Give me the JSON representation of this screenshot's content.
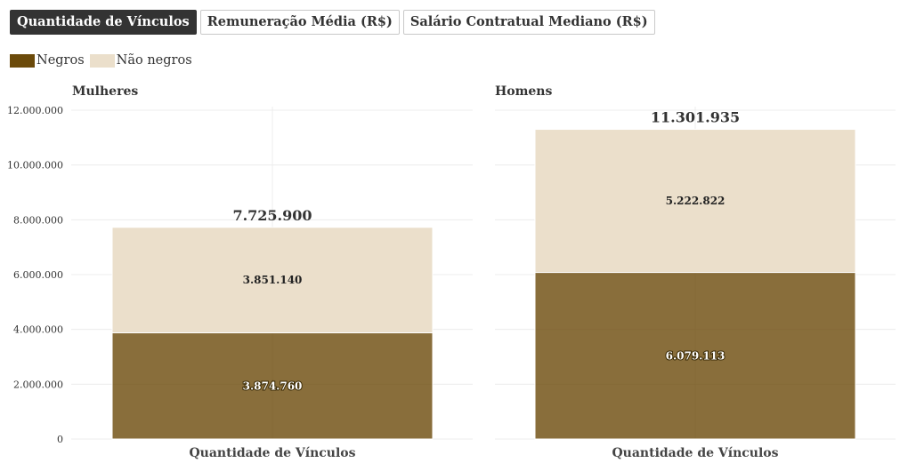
{
  "tabs": [
    {
      "label": "Quantidade de Vínculos",
      "active": true
    },
    {
      "label": "Remuneração Média (R$)",
      "active": false
    },
    {
      "label": "Salário Contratual Mediano (R$)",
      "active": false
    }
  ],
  "legend": [
    {
      "label": "Negros",
      "color": "#6b4a0a"
    },
    {
      "label": "Não negros",
      "color": "#ebdfcb"
    }
  ],
  "chart_data": [
    {
      "type": "bar",
      "stacked": true,
      "title": "Mulheres",
      "categories": [
        "Quantidade de Vínculos"
      ],
      "series": [
        {
          "name": "Negros",
          "values": [
            3874760
          ],
          "label": "3.874.760"
        },
        {
          "name": "Não negros",
          "values": [
            3851140
          ],
          "label": "3.851.140"
        }
      ],
      "total": 7725900,
      "total_label": "7.725.900",
      "ylim": [
        0,
        12000000
      ],
      "yticks": [
        0,
        2000000,
        4000000,
        6000000,
        8000000,
        10000000,
        12000000
      ],
      "ytick_labels": [
        "0",
        "2.000.000",
        "4.000.000",
        "6.000.000",
        "8.000.000",
        "10.000.000",
        "12.000.000"
      ],
      "show_y_axis": true,
      "grid": true
    },
    {
      "type": "bar",
      "stacked": true,
      "title": "Homens",
      "categories": [
        "Quantidade de Vínculos"
      ],
      "series": [
        {
          "name": "Negros",
          "values": [
            6079113
          ],
          "label": "6.079.113"
        },
        {
          "name": "Não negros",
          "values": [
            5222822
          ],
          "label": "5.222.822"
        }
      ],
      "total": 11301935,
      "total_label": "11.301.935",
      "ylim": [
        0,
        12000000
      ],
      "yticks": [
        0,
        2000000,
        4000000,
        6000000,
        8000000,
        10000000,
        12000000
      ],
      "show_y_axis": false,
      "grid": true
    }
  ]
}
